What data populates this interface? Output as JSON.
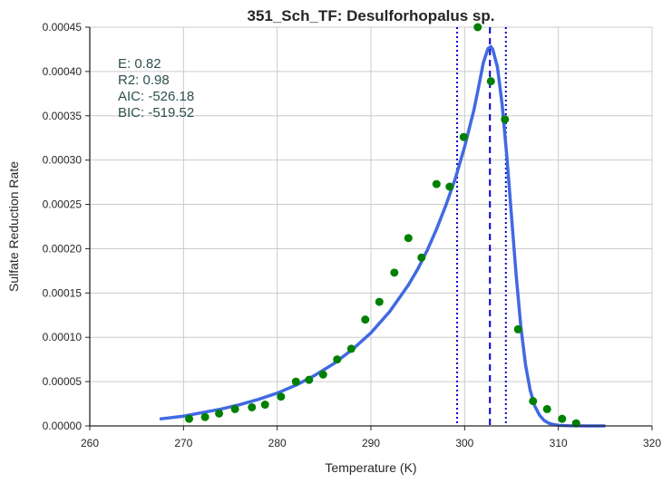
{
  "chart_data": {
    "type": "scatter",
    "title": "351_Sch_TF: Desulforhopalus sp.",
    "xlabel": "Temperature (K)",
    "ylabel": "Sulfate Reduction Rate",
    "xlim": [
      260,
      320
    ],
    "ylim": [
      0,
      0.00045
    ],
    "xticks": [
      "260",
      "270",
      "280",
      "290",
      "300",
      "310",
      "320"
    ],
    "yticks": [
      "0.00000",
      "0.00005",
      "0.00010",
      "0.00015",
      "0.00020",
      "0.00025",
      "0.00030",
      "0.00035",
      "0.00040",
      "0.00045"
    ],
    "grid": true,
    "stats": [
      "E:  0.82",
      "R2:  0.98",
      "AIC: -526.18",
      "BIC: -519.52"
    ],
    "series": [
      {
        "kind": "points",
        "color": "#008000",
        "x": [
          270.6,
          272.3,
          273.8,
          275.5,
          277.3,
          278.7,
          280.4,
          282.0,
          283.4,
          284.9,
          286.4,
          287.9,
          289.4,
          290.9,
          292.5,
          294.0,
          295.4,
          297.0,
          298.4,
          299.9,
          301.4,
          302.8,
          304.3,
          305.7,
          307.3,
          308.8,
          310.4,
          311.9
        ],
        "y": [
          8e-06,
          1e-05,
          1.4e-05,
          1.9e-05,
          2.1e-05,
          2.4e-05,
          3.3e-05,
          5e-05,
          5.2e-05,
          5.8e-05,
          7.5e-05,
          8.7e-05,
          0.00012,
          0.00014,
          0.000173,
          0.000212,
          0.00019,
          0.000273,
          0.00027,
          0.000326,
          0.00045,
          0.000389,
          0.000346,
          0.000109,
          2.8e-05,
          1.9e-05,
          8e-06,
          3e-06
        ]
      },
      {
        "kind": "fit",
        "color": "#4169e1",
        "x": [
          267.6,
          270,
          272,
          274,
          276,
          278,
          280,
          282,
          284,
          286,
          288,
          290,
          292,
          294,
          295,
          296,
          297,
          298,
          299,
          300,
          301,
          301.5,
          302,
          302.5,
          302.8,
          303,
          303.5,
          304,
          304.5,
          305,
          305.5,
          306,
          306.5,
          307,
          307.5,
          308,
          308.5,
          309,
          309.5,
          310,
          311,
          312,
          313,
          314,
          314.9
        ],
        "y": [
          8e-06,
          1.1e-05,
          1.5e-05,
          1.9e-05,
          2.4e-05,
          3e-05,
          3.7e-05,
          4.6e-05,
          5.7e-05,
          7e-05,
          8.6e-05,
          0.000105,
          0.000129,
          0.000159,
          0.000177,
          0.000198,
          0.000222,
          0.000249,
          0.000279,
          0.000315,
          0.000357,
          0.000383,
          0.00041,
          0.000426,
          0.000428,
          0.000425,
          0.000405,
          0.000363,
          0.000305,
          0.000237,
          0.00017,
          0.000112,
          6.9e-05,
          4e-05,
          2.2e-05,
          1.2e-05,
          6e-06,
          3e-06,
          1.5e-06,
          7e-07,
          2e-07,
          1e-07,
          0,
          0,
          0
        ]
      }
    ],
    "vlines": [
      {
        "x": 302.7,
        "style": "dashed",
        "color": "#0000cd"
      },
      {
        "x": 299.2,
        "style": "dotted",
        "color": "#0000cd"
      },
      {
        "x": 304.4,
        "style": "dotted",
        "color": "#0000cd"
      }
    ]
  }
}
